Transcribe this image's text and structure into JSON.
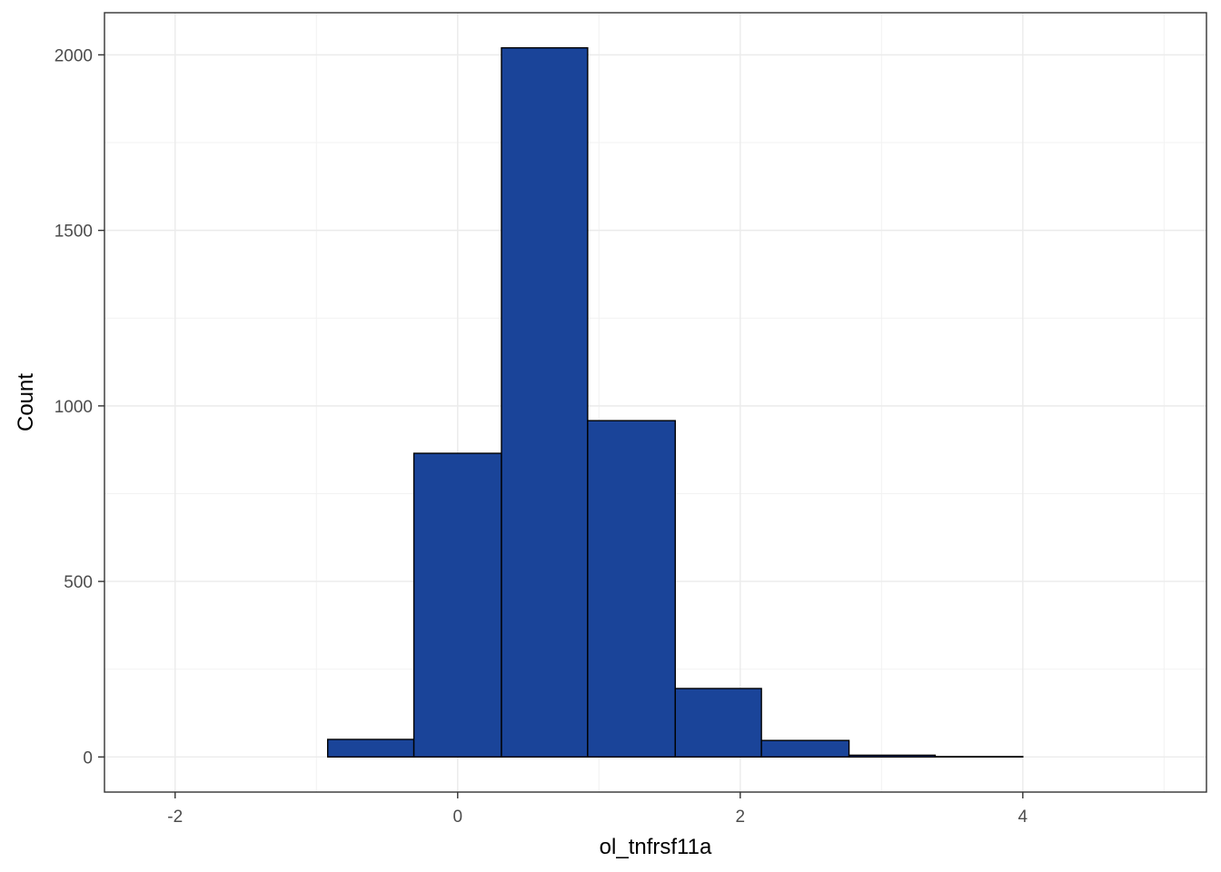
{
  "chart_data": {
    "type": "histogram",
    "xlabel": "ol_tnfrsf11a",
    "ylabel": "Count",
    "xlim": [
      -2.5,
      5.3
    ],
    "ylim": [
      -100,
      2120
    ],
    "x_ticks": [
      -2,
      0,
      2,
      4
    ],
    "x_tick_labels": [
      "-2",
      "0",
      "2",
      "4"
    ],
    "y_ticks": [
      0,
      500,
      1000,
      1500,
      2000
    ],
    "y_tick_labels": [
      "0",
      "500",
      "1000",
      "1500",
      "2000"
    ],
    "grid": true,
    "bins": [
      {
        "x0": -2.15,
        "x1": -1.54,
        "count": 0
      },
      {
        "x0": -1.54,
        "x1": -0.92,
        "count": 0
      },
      {
        "x0": -0.92,
        "x1": -0.31,
        "count": 50
      },
      {
        "x0": -0.31,
        "x1": 0.31,
        "count": 865
      },
      {
        "x0": 0.31,
        "x1": 0.92,
        "count": 2020
      },
      {
        "x0": 0.92,
        "x1": 1.54,
        "count": 958
      },
      {
        "x0": 1.54,
        "x1": 2.15,
        "count": 195
      },
      {
        "x0": 2.15,
        "x1": 2.77,
        "count": 47
      },
      {
        "x0": 2.77,
        "x1": 3.38,
        "count": 5
      },
      {
        "x0": 3.38,
        "x1": 4.0,
        "count": 1
      },
      {
        "x0": 4.0,
        "x1": 4.61,
        "count": 0
      },
      {
        "x0": 4.61,
        "x1": 5.23,
        "count": 0
      }
    ],
    "bar_color": "#1a4499",
    "bar_outline_color": "#000000",
    "grid_major_color": "#ebebeb",
    "grid_minor_color": "#f2f2f2",
    "panel_border_color": "#333333"
  }
}
